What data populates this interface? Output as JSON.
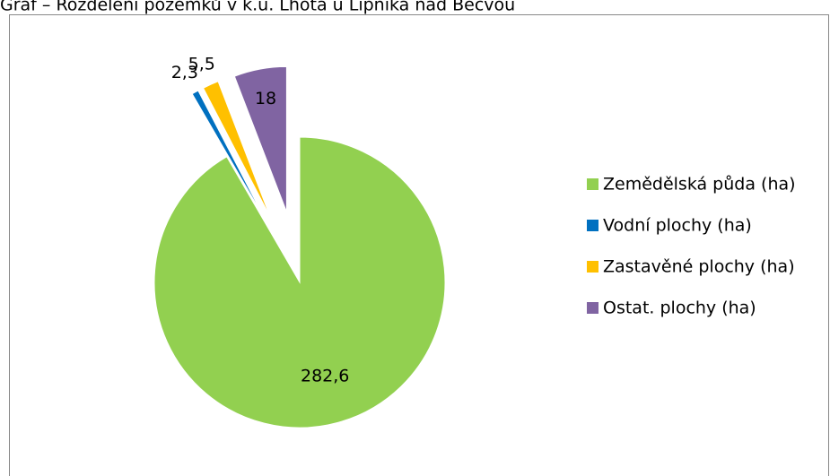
{
  "chart_data": {
    "type": "pie",
    "title": "Graf – Rozdělení pozemků v k.ú. Lhota u Lipníka nad Bečvou",
    "categories": [
      "Zemědělská půda (ha)",
      "Vodní plochy (ha)",
      "Zastavěné plochy (ha)",
      "Ostat. plochy (ha)"
    ],
    "values": [
      282.6,
      2.3,
      5.5,
      18
    ],
    "value_labels": [
      "282,6",
      "2,3",
      "5,5",
      "18"
    ],
    "colors": [
      "#92d050",
      "#0070c0",
      "#ffc000",
      "#8064a2"
    ],
    "legend": "right"
  }
}
